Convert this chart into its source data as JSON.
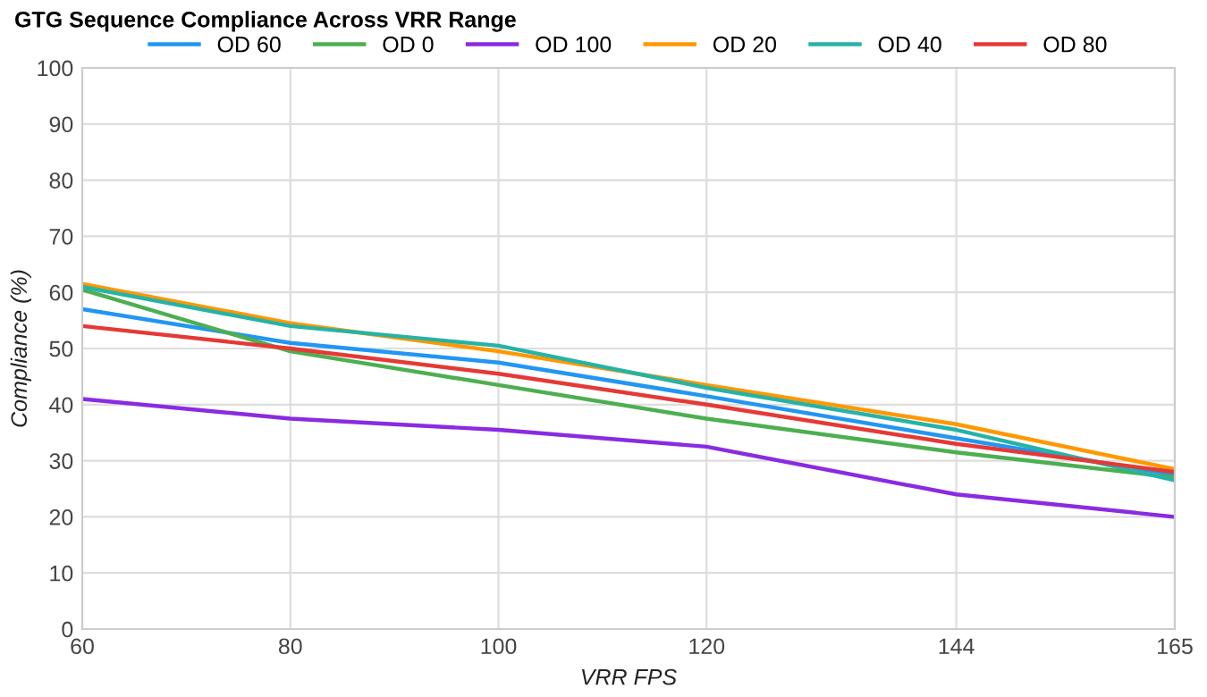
{
  "chart_data": {
    "type": "line",
    "title": "GTG Sequence Compliance Across VRR Range",
    "xlabel": "VRR FPS",
    "ylabel": "Compliance (%)",
    "x": [
      60,
      80,
      100,
      120,
      144,
      165
    ],
    "series": [
      {
        "name": "OD 60",
        "color": "#2196f3",
        "values": [
          57,
          51,
          47.5,
          41.5,
          34,
          27.5
        ]
      },
      {
        "name": "OD 0",
        "color": "#4caf50",
        "values": [
          60.5,
          49.5,
          43.5,
          37.5,
          31.5,
          27
        ]
      },
      {
        "name": "OD 100",
        "color": "#8a2be2",
        "values": [
          41,
          37.5,
          35.5,
          32.5,
          24,
          20
        ]
      },
      {
        "name": "OD 20",
        "color": "#ff9800",
        "values": [
          61.5,
          54.5,
          49.5,
          43.5,
          36.5,
          28.5
        ]
      },
      {
        "name": "OD 40",
        "color": "#26b3a6",
        "values": [
          61,
          54,
          50.5,
          43,
          35.5,
          26.5
        ]
      },
      {
        "name": "OD 80",
        "color": "#e53935",
        "values": [
          54,
          50,
          45.5,
          40,
          33,
          28
        ]
      }
    ],
    "xlim": [
      60,
      165
    ],
    "xticks": [
      60,
      80,
      100,
      120,
      144,
      165
    ],
    "ylim": [
      0,
      100
    ],
    "yticks": [
      0,
      10,
      20,
      30,
      40,
      50,
      60,
      70,
      80,
      90,
      100
    ],
    "grid": true,
    "legend": "top",
    "marker": "none",
    "line_style": "solid"
  }
}
